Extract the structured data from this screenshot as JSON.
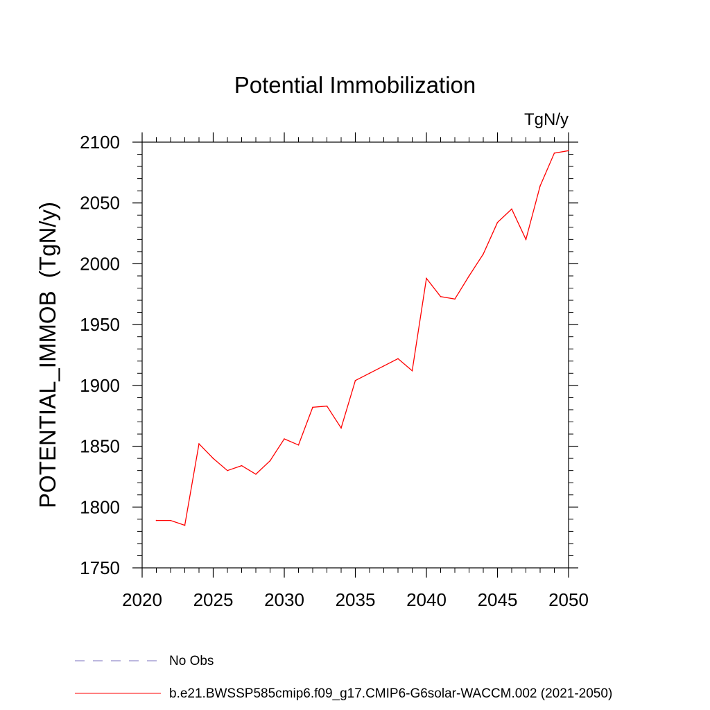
{
  "chart_data": {
    "type": "line",
    "title": "Potential Immobilization",
    "units_label": "TgN/y",
    "ylabel": "POTENTIAL_IMMOB  (TgN/y)",
    "xlabel": "",
    "xlim": [
      2020,
      2050
    ],
    "ylim": [
      1750,
      2100
    ],
    "x_ticks": [
      2020,
      2025,
      2030,
      2035,
      2040,
      2045,
      2050
    ],
    "y_ticks": [
      1750,
      1800,
      1850,
      1900,
      1950,
      2000,
      2050,
      2100
    ],
    "x": [
      2021,
      2022,
      2023,
      2024,
      2025,
      2026,
      2027,
      2028,
      2029,
      2030,
      2031,
      2032,
      2033,
      2034,
      2035,
      2036,
      2037,
      2038,
      2039,
      2040,
      2041,
      2042,
      2043,
      2044,
      2045,
      2046,
      2047,
      2048,
      2049,
      2050
    ],
    "series": [
      {
        "name": "b.e21.BWSSP585cmip6.f09_g17.CMIP6-G6solar-WACCM.002 (2021-2050)",
        "color": "#ff0000",
        "values": [
          1789,
          1789,
          1785,
          1852,
          1840,
          1830,
          1834,
          1827,
          1838,
          1856,
          1851,
          1882,
          1883,
          1865,
          1904,
          1910,
          1916,
          1922,
          1912,
          1988,
          1973,
          1971,
          1990,
          2008,
          2034,
          2045,
          2020,
          2064,
          2091,
          2093
        ]
      }
    ],
    "legend": [
      {
        "label": "No Obs",
        "style": "dashed",
        "color": "#7a6fbf"
      },
      {
        "label": "b.e21.BWSSP585cmip6.f09_g17.CMIP6-G6solar-WACCM.002 (2021-2050)",
        "style": "solid",
        "color": "#ff0000"
      }
    ],
    "grid": false,
    "legend_position": "bottom-left"
  }
}
